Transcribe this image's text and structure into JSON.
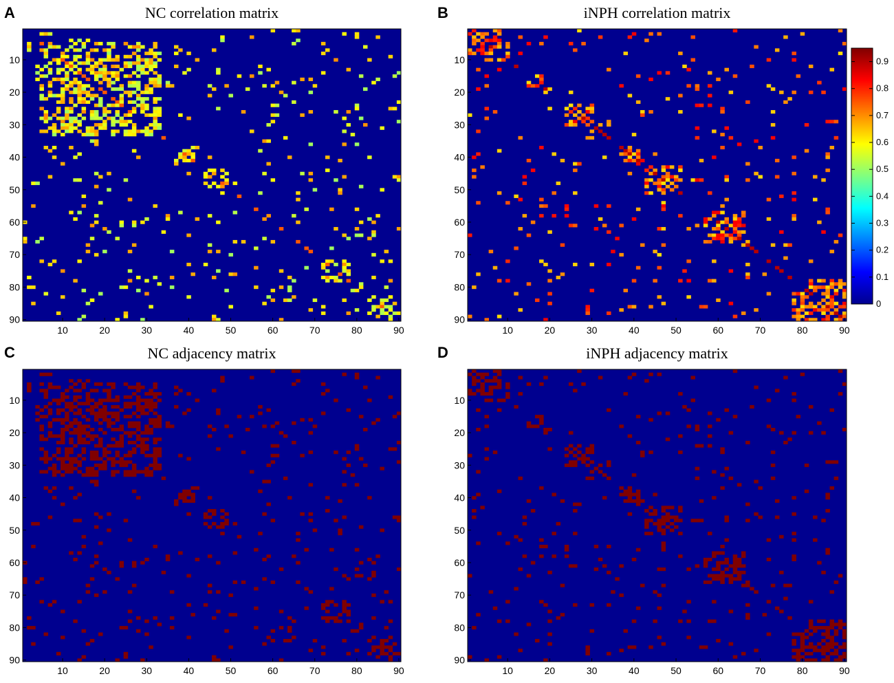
{
  "figure": {
    "panels": [
      {
        "id": "A",
        "letter": "A",
        "title": "NC correlation matrix",
        "kind": "correlation"
      },
      {
        "id": "B",
        "letter": "B",
        "title": "iNPH correlation matrix",
        "kind": "correlation"
      },
      {
        "id": "C",
        "letter": "C",
        "title": "NC adjacency matrix",
        "kind": "adjacency"
      },
      {
        "id": "D",
        "letter": "D",
        "title": "iNPH adjacency matrix",
        "kind": "adjacency"
      }
    ],
    "colors": {
      "background": "#00008f",
      "adjacency_on": "#800000",
      "jet": [
        "#00008f",
        "#0000ff",
        "#0080ff",
        "#00ffff",
        "#80ff80",
        "#ffff00",
        "#ff8000",
        "#ff0000",
        "#800000"
      ]
    }
  },
  "chart_data": [
    {
      "type": "heatmap",
      "panel": "A",
      "title": "NC correlation matrix",
      "size": 90,
      "x_ticks": [
        10,
        20,
        30,
        40,
        50,
        60,
        70,
        80,
        90
      ],
      "y_ticks": [
        10,
        20,
        30,
        40,
        50,
        60,
        70,
        80,
        90
      ],
      "value_range": [
        0,
        0.95
      ],
      "typical_values": [
        0.5,
        0.7
      ],
      "dense_blocks": [
        [
          5,
          33,
          5,
          33
        ],
        [
          12,
          33,
          12,
          33
        ],
        [
          37,
          41,
          37,
          41
        ],
        [
          44,
          49,
          44,
          49
        ],
        [
          72,
          78,
          72,
          78
        ],
        [
          79,
          81,
          79,
          81
        ],
        [
          83,
          90,
          83,
          90
        ]
      ]
    },
    {
      "type": "heatmap",
      "panel": "B",
      "title": "iNPH correlation matrix",
      "size": 90,
      "x_ticks": [
        10,
        20,
        30,
        40,
        50,
        60,
        70,
        80,
        90
      ],
      "y_ticks": [
        10,
        20,
        30,
        40,
        50,
        60,
        70,
        80,
        90
      ],
      "value_range": [
        0,
        0.95
      ],
      "typical_values": [
        0.62,
        0.85
      ],
      "dense_blocks": [
        [
          1,
          10,
          1,
          10
        ],
        [
          15,
          18,
          15,
          18
        ],
        [
          24,
          30,
          24,
          30
        ],
        [
          37,
          41,
          37,
          41
        ],
        [
          43,
          51,
          43,
          51
        ],
        [
          57,
          66,
          57,
          66
        ],
        [
          78,
          90,
          78,
          90
        ]
      ],
      "colorbar": {
        "ticks": [
          0,
          0.1,
          0.2,
          0.3,
          0.4,
          0.5,
          0.6,
          0.7,
          0.8,
          0.9
        ],
        "labels": [
          "0",
          "0.1",
          "0.2",
          "0.3",
          "0.4",
          "0.5",
          "0.6",
          "0.7",
          "0.8",
          "0.9"
        ],
        "range": [
          0,
          0.95
        ]
      }
    },
    {
      "type": "heatmap",
      "panel": "C",
      "title": "NC adjacency matrix",
      "size": 90,
      "x_ticks": [
        10,
        20,
        30,
        40,
        50,
        60,
        70,
        80,
        90
      ],
      "y_ticks": [
        10,
        20,
        30,
        40,
        50,
        60,
        70,
        80,
        90
      ],
      "binary": true,
      "source_panel": "A"
    },
    {
      "type": "heatmap",
      "panel": "D",
      "title": "iNPH adjacency matrix",
      "size": 90,
      "x_ticks": [
        10,
        20,
        30,
        40,
        50,
        60,
        70,
        80,
        90
      ],
      "y_ticks": [
        10,
        20,
        30,
        40,
        50,
        60,
        70,
        80,
        90
      ],
      "binary": true,
      "source_panel": "B"
    }
  ]
}
